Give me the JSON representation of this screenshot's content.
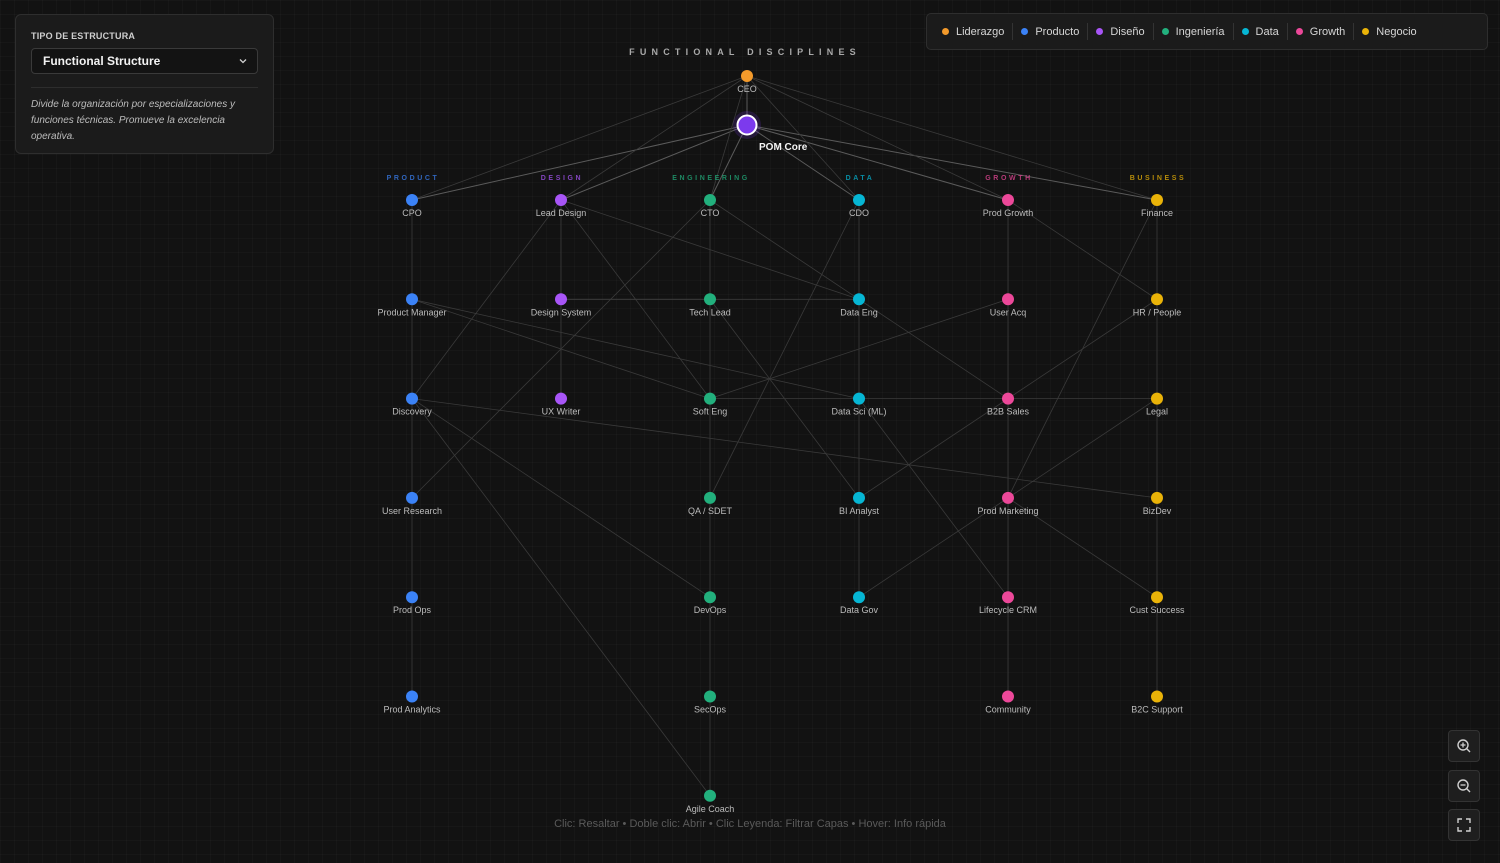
{
  "panel": {
    "label": "TIPO DE ESTRUCTURA",
    "selected": "Functional Structure",
    "description": "Divide la organización por especializaciones y funciones técnicas. Promueve la excelencia operativa."
  },
  "legend": [
    {
      "label": "Liderazgo",
      "color": "#f39a2b"
    },
    {
      "label": "Producto",
      "color": "#3b82f6"
    },
    {
      "label": "Diseño",
      "color": "#a855f7"
    },
    {
      "label": "Ingeniería",
      "color": "#22b07d"
    },
    {
      "label": "Data",
      "color": "#06b6d4"
    },
    {
      "label": "Growth",
      "color": "#ec4899"
    },
    {
      "label": "Negocio",
      "color": "#eab308"
    }
  ],
  "diagram": {
    "title": "FUNCTIONAL DISCIPLINES",
    "ceo": {
      "label": "CEO",
      "color": "#f39a2b"
    },
    "core": {
      "label": "POM Core",
      "color": "#7c3aed"
    },
    "columns": [
      {
        "title": "PRODUCT",
        "color": "#3b82f6",
        "nodes": [
          "CPO",
          "Product Manager",
          "Discovery",
          "User Research",
          "Prod Ops",
          "Prod Analytics"
        ]
      },
      {
        "title": "DESIGN",
        "color": "#a855f7",
        "nodes": [
          "Lead Design",
          "Design System",
          "UX Writer"
        ]
      },
      {
        "title": "ENGINEERING",
        "color": "#22b07d",
        "nodes": [
          "CTO",
          "Tech Lead",
          "Soft Eng",
          "QA / SDET",
          "DevOps",
          "SecOps",
          "Agile Coach"
        ]
      },
      {
        "title": "DATA",
        "color": "#06b6d4",
        "nodes": [
          "CDO",
          "Data Eng",
          "Data Sci (ML)",
          "BI Analyst",
          "Data Gov"
        ]
      },
      {
        "title": "GROWTH",
        "color": "#ec4899",
        "nodes": [
          "Prod Growth",
          "User Acq",
          "B2B Sales",
          "Prod Marketing",
          "Lifecycle CRM",
          "Community"
        ]
      },
      {
        "title": "BUSINESS",
        "color": "#eab308",
        "nodes": [
          "Finance",
          "HR / People",
          "Legal",
          "BizDev",
          "Cust Success",
          "B2C Support"
        ]
      }
    ]
  },
  "hint": "Clic: Resaltar • Doble clic: Abrir • Clic Leyenda: Filtrar Capas • Hover: Info rápida",
  "controls": {
    "zoom_in_icon": "zoom-in-icon",
    "zoom_out_icon": "zoom-out-icon",
    "fullscreen_icon": "fullscreen-icon"
  }
}
